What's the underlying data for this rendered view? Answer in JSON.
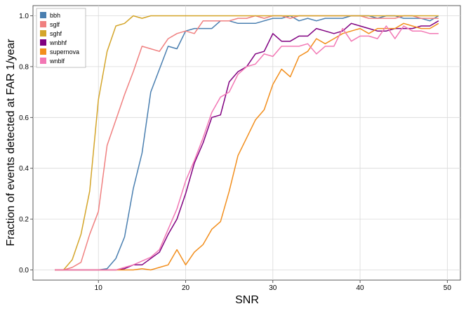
{
  "chart_data": {
    "type": "line",
    "title": "",
    "xlabel": "SNR",
    "ylabel": "Fraction of events detected at FAR 1/year",
    "xlim": [
      2.5,
      51.5
    ],
    "ylim": [
      -0.04,
      1.04
    ],
    "xticks": [
      10,
      20,
      30,
      40,
      50
    ],
    "yticks": [
      0.0,
      0.2,
      0.4,
      0.6,
      0.8,
      1.0
    ],
    "grid": true,
    "legend_position": "top-left",
    "x": [
      5,
      6,
      7,
      8,
      9,
      10,
      11,
      12,
      13,
      14,
      15,
      16,
      17,
      18,
      19,
      20,
      21,
      22,
      23,
      24,
      25,
      26,
      27,
      28,
      29,
      30,
      31,
      32,
      33,
      34,
      35,
      36,
      37,
      38,
      39,
      40,
      41,
      42,
      43,
      44,
      45,
      46,
      47,
      48,
      49
    ],
    "series": [
      {
        "name": "bbh",
        "color": "#4a7fb0",
        "values": [
          0,
          0,
          0,
          0,
          0,
          0,
          0.005,
          0.045,
          0.13,
          0.32,
          0.46,
          0.7,
          0.79,
          0.88,
          0.87,
          0.94,
          0.95,
          0.95,
          0.95,
          0.98,
          0.98,
          0.97,
          0.97,
          0.97,
          0.98,
          0.99,
          0.99,
          1.0,
          0.98,
          0.99,
          0.98,
          0.99,
          0.99,
          0.99,
          1.0,
          1.0,
          1.0,
          0.99,
          1.0,
          1.0,
          0.99,
          0.99,
          0.99,
          0.98,
          1.0
        ]
      },
      {
        "name": "sglf",
        "color": "#f08080",
        "values": [
          0,
          0,
          0.01,
          0.03,
          0.14,
          0.23,
          0.49,
          0.59,
          0.69,
          0.78,
          0.88,
          0.87,
          0.86,
          0.91,
          0.93,
          0.94,
          0.93,
          0.98,
          0.98,
          0.98,
          0.98,
          0.99,
          0.99,
          1.0,
          0.99,
          1.0,
          1.0,
          0.99,
          1.0,
          1.0,
          1.0,
          1.0,
          1.0,
          1.0,
          1.0,
          1.0,
          0.99,
          0.99,
          0.99,
          0.99,
          1.0,
          1.0,
          0.99,
          0.99,
          0.99
        ]
      },
      {
        "name": "sghf",
        "color": "#d4a52a",
        "values": [
          0,
          0,
          0.04,
          0.14,
          0.31,
          0.67,
          0.86,
          0.96,
          0.97,
          1.0,
          0.99,
          1.0,
          1.0,
          1.0,
          1.0,
          1.0,
          1.0,
          1.0,
          1.0,
          1.0,
          1.0,
          1.0,
          1.0,
          1.0,
          1.0,
          1.0,
          1.0,
          1.0,
          1.0,
          1.0,
          1.0,
          1.0,
          1.0,
          1.0,
          1.0,
          1.0,
          1.0,
          1.0,
          1.0,
          1.0,
          1.0,
          1.0,
          1.0,
          1.0,
          1.0
        ]
      },
      {
        "name": "wnbhf",
        "color": "#800080",
        "values": [
          0,
          0,
          0,
          0,
          0,
          0,
          0,
          0,
          0.005,
          0.02,
          0.02,
          0.045,
          0.07,
          0.14,
          0.2,
          0.3,
          0.42,
          0.5,
          0.6,
          0.61,
          0.74,
          0.78,
          0.8,
          0.85,
          0.86,
          0.93,
          0.9,
          0.9,
          0.92,
          0.92,
          0.95,
          0.94,
          0.93,
          0.94,
          0.97,
          0.96,
          0.95,
          0.94,
          0.94,
          0.95,
          0.95,
          0.95,
          0.96,
          0.96,
          0.98
        ]
      },
      {
        "name": "supernova",
        "color": "#f28e1c",
        "values": [
          0,
          0,
          0,
          0,
          0,
          0,
          0,
          0,
          0,
          0,
          0.005,
          0,
          0.01,
          0.02,
          0.08,
          0.02,
          0.07,
          0.1,
          0.16,
          0.19,
          0.31,
          0.45,
          0.52,
          0.59,
          0.63,
          0.73,
          0.79,
          0.76,
          0.84,
          0.86,
          0.91,
          0.89,
          0.91,
          0.93,
          0.94,
          0.95,
          0.93,
          0.95,
          0.95,
          0.95,
          0.97,
          0.96,
          0.95,
          0.95,
          0.97
        ]
      },
      {
        "name": "wnblf",
        "color": "#f277b4",
        "values": [
          0,
          0,
          0,
          0,
          0,
          0,
          0,
          0,
          0.01,
          0.02,
          0.035,
          0.05,
          0.08,
          0.16,
          0.24,
          0.35,
          0.43,
          0.52,
          0.62,
          0.68,
          0.7,
          0.77,
          0.8,
          0.81,
          0.85,
          0.84,
          0.88,
          0.88,
          0.88,
          0.89,
          0.85,
          0.88,
          0.88,
          0.95,
          0.9,
          0.92,
          0.92,
          0.91,
          0.96,
          0.91,
          0.96,
          0.94,
          0.94,
          0.93,
          0.93
        ]
      }
    ]
  }
}
